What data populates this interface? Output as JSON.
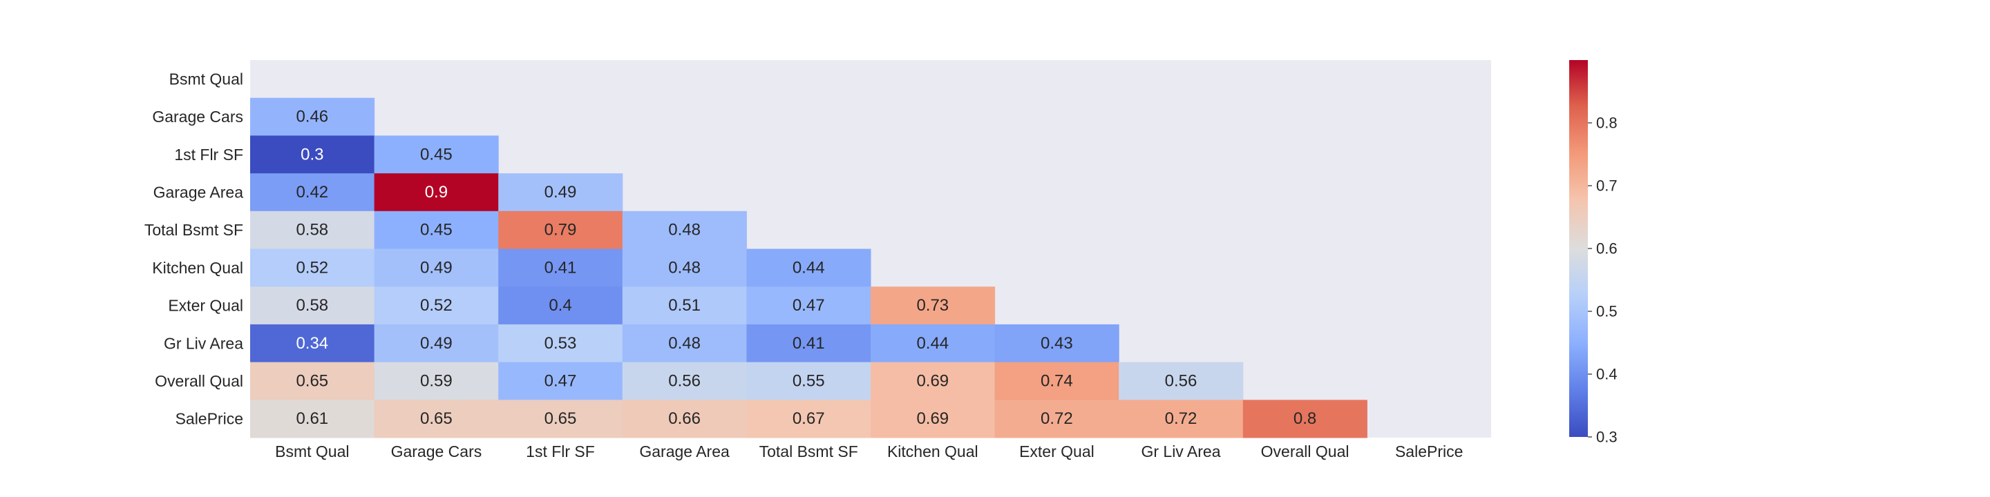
{
  "chart_data": {
    "type": "heatmap",
    "title": "",
    "xlabel": "",
    "ylabel": "",
    "x_categories": [
      "Bsmt Qual",
      "Garage Cars",
      "1st Flr SF",
      "Garage Area",
      "Total Bsmt SF",
      "Kitchen Qual",
      "Exter Qual",
      "Gr Liv Area",
      "Overall Qual",
      "SalePrice"
    ],
    "y_categories": [
      "Bsmt Qual",
      "Garage Cars",
      "1st Flr SF",
      "Garage Area",
      "Total Bsmt SF",
      "Kitchen Qual",
      "Exter Qual",
      "Gr Liv Area",
      "Overall Qual",
      "SalePrice"
    ],
    "values": [
      [
        null,
        null,
        null,
        null,
        null,
        null,
        null,
        null,
        null,
        null
      ],
      [
        0.46,
        null,
        null,
        null,
        null,
        null,
        null,
        null,
        null,
        null
      ],
      [
        0.3,
        0.45,
        null,
        null,
        null,
        null,
        null,
        null,
        null,
        null
      ],
      [
        0.42,
        0.9,
        0.49,
        null,
        null,
        null,
        null,
        null,
        null,
        null
      ],
      [
        0.58,
        0.45,
        0.79,
        0.48,
        null,
        null,
        null,
        null,
        null,
        null
      ],
      [
        0.52,
        0.49,
        0.41,
        0.48,
        0.44,
        null,
        null,
        null,
        null,
        null
      ],
      [
        0.58,
        0.52,
        0.4,
        0.51,
        0.47,
        0.73,
        null,
        null,
        null,
        null
      ],
      [
        0.34,
        0.49,
        0.53,
        0.48,
        0.41,
        0.44,
        0.43,
        null,
        null,
        null
      ],
      [
        0.65,
        0.59,
        0.47,
        0.56,
        0.55,
        0.69,
        0.74,
        0.56,
        null,
        null
      ],
      [
        0.61,
        0.65,
        0.65,
        0.66,
        0.67,
        0.69,
        0.72,
        0.72,
        0.8,
        null
      ]
    ],
    "mask": "upper triangle and diagonal",
    "colormap": "coolwarm",
    "vmin": 0.3,
    "vmax": 0.9,
    "colorbar": {
      "ticks": [
        0.3,
        0.4,
        0.5,
        0.6,
        0.7,
        0.8
      ],
      "tick_labels": [
        "0.3",
        "0.4",
        "0.5",
        "0.6",
        "0.7",
        "0.8"
      ],
      "placement": "right"
    },
    "background_color": "#eaeaf2",
    "grid": false
  }
}
